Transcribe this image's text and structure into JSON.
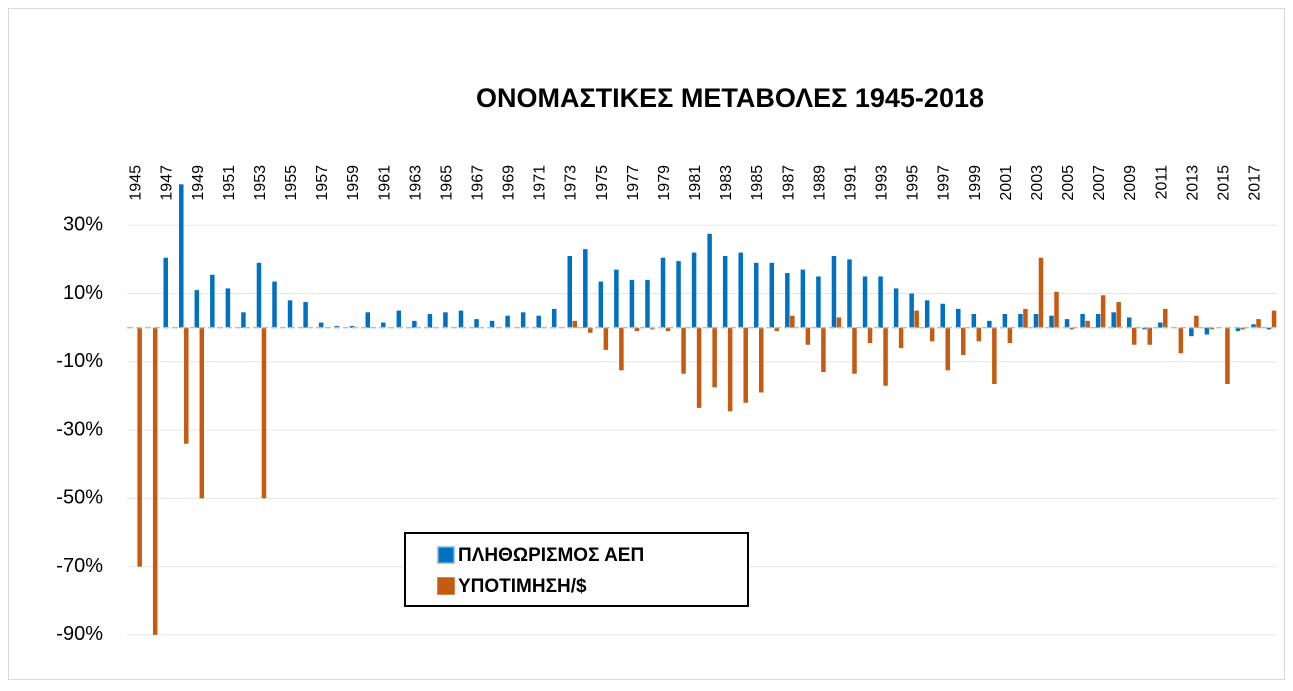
{
  "chart_data": {
    "type": "bar",
    "title": "ΟΝΟΜΑΣΤΙΚΕΣ ΜΕΤΑΒΟΛΕΣ   1945-2018",
    "categories": [
      "1945",
      null,
      "1947",
      null,
      "1949",
      null,
      "1951",
      null,
      "1953",
      null,
      "1955",
      null,
      "1957",
      null,
      "1959",
      null,
      "1961",
      null,
      "1963",
      null,
      "1965",
      null,
      "1967",
      null,
      "1969",
      null,
      "1971",
      null,
      "1973",
      null,
      "1975",
      null,
      "1977",
      null,
      "1979",
      null,
      "1981",
      null,
      "1983",
      null,
      "1985",
      null,
      "1987",
      null,
      "1989",
      null,
      "1991",
      null,
      "1993",
      null,
      "1995",
      null,
      "1997",
      null,
      "1999",
      null,
      "2001",
      null,
      "2003",
      null,
      "2005",
      null,
      "2007",
      null,
      "2009",
      null,
      "2011",
      null,
      "2013",
      null,
      "2015",
      null,
      "2017",
      null
    ],
    "series": [
      {
        "name": "ΠΛΗΘΩΡΙΣΜΟΣ ΑΕΠ",
        "color": "#0070c0",
        "values": [
          0,
          0,
          20.5,
          42,
          11,
          15.5,
          11.5,
          4.5,
          19,
          13.5,
          8,
          7.5,
          1.5,
          0.5,
          0.5,
          4.5,
          1.5,
          5,
          2,
          4,
          4.5,
          5,
          2.5,
          2,
          3.5,
          4.5,
          3.5,
          5.5,
          21,
          23,
          13.5,
          17,
          14,
          14,
          20.5,
          19.5,
          22,
          27.5,
          21,
          22,
          19,
          19,
          16,
          17,
          15,
          21,
          20,
          15,
          15,
          11.5,
          10,
          8,
          7,
          5.5,
          4,
          2,
          4,
          4,
          4,
          3.5,
          2.5,
          4,
          4,
          4.5,
          3,
          -0.5,
          1.5,
          0,
          -2.5,
          -2,
          0,
          -1,
          1,
          -0.5
        ]
      },
      {
        "name": "ΥΠΟΤΙΜΗΣΗ/$",
        "color": "#c55a11",
        "values": [
          -70,
          -90,
          0,
          -34,
          -50,
          0,
          0,
          0,
          -50,
          0,
          0,
          0,
          0,
          0,
          0,
          0,
          0,
          0,
          0,
          0,
          0,
          0,
          0,
          0,
          0,
          0,
          0,
          0,
          2,
          -1.5,
          -6.5,
          -12.5,
          -1,
          -0.5,
          -1,
          -13.5,
          -23.5,
          -17.5,
          -24.5,
          -22,
          -19,
          -1,
          3.5,
          -5,
          -13,
          3,
          -13.5,
          -4.5,
          -17,
          -6,
          5,
          -4,
          -12.5,
          -8,
          -4,
          -16.5,
          -4.5,
          5.5,
          20.5,
          10.5,
          -0.5,
          2,
          9.5,
          7.5,
          -5,
          -5,
          5.5,
          -7.5,
          3.5,
          -0.5,
          -16.5,
          -0.5,
          2.5,
          5
        ]
      }
    ],
    "ylim": [
      -100,
      50
    ],
    "yticks": [
      {
        "value": -90,
        "label": "-90%"
      },
      {
        "value": -70,
        "label": "-70%"
      },
      {
        "value": -50,
        "label": "-50%"
      },
      {
        "value": -30,
        "label": "-30%"
      },
      {
        "value": -10,
        "label": "-10%"
      },
      {
        "value": 10,
        "label": "10%"
      },
      {
        "value": 30,
        "label": "30%"
      }
    ],
    "grid": true,
    "legend": "lower left"
  }
}
